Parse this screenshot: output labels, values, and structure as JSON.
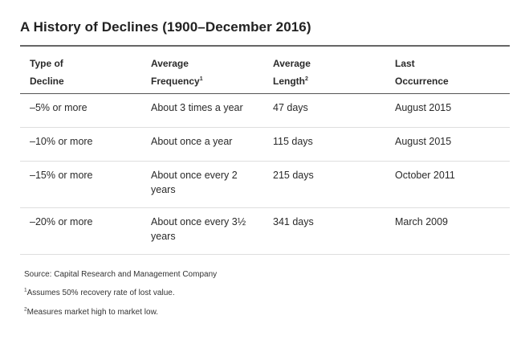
{
  "title": "A History of Declines (1900–December 2016)",
  "headers": {
    "col1_line1": "Type of",
    "col1_line2": "Decline",
    "col2_line1": "Average",
    "col2_line2": "Frequency",
    "col2_sup": "1",
    "col3_line1": "Average",
    "col3_line2": "Length",
    "col3_sup": "2",
    "col4_line1": "Last",
    "col4_line2": "Occurrence"
  },
  "rows": [
    {
      "decline": "–5% or more",
      "frequency": "About 3 times a year",
      "length": "47 days",
      "last": "August 2015"
    },
    {
      "decline": "–10% or more",
      "frequency": "About once a year",
      "length": "115 days",
      "last": "August 2015"
    },
    {
      "decline": "–15% or more",
      "frequency": "About once every 2 years",
      "length": "215 days",
      "last": "October 2011"
    },
    {
      "decline": "–20% or more",
      "frequency": "About once every 3½ years",
      "length": "341 days",
      "last": "March 2009"
    }
  ],
  "notes": {
    "source": "Source: Capital Research and Management Company",
    "footnote1_marker": "1",
    "footnote1_text": "Assumes 50% recovery rate of lost value.",
    "footnote2_marker": "2",
    "footnote2_text": "Measures market high to market low."
  }
}
